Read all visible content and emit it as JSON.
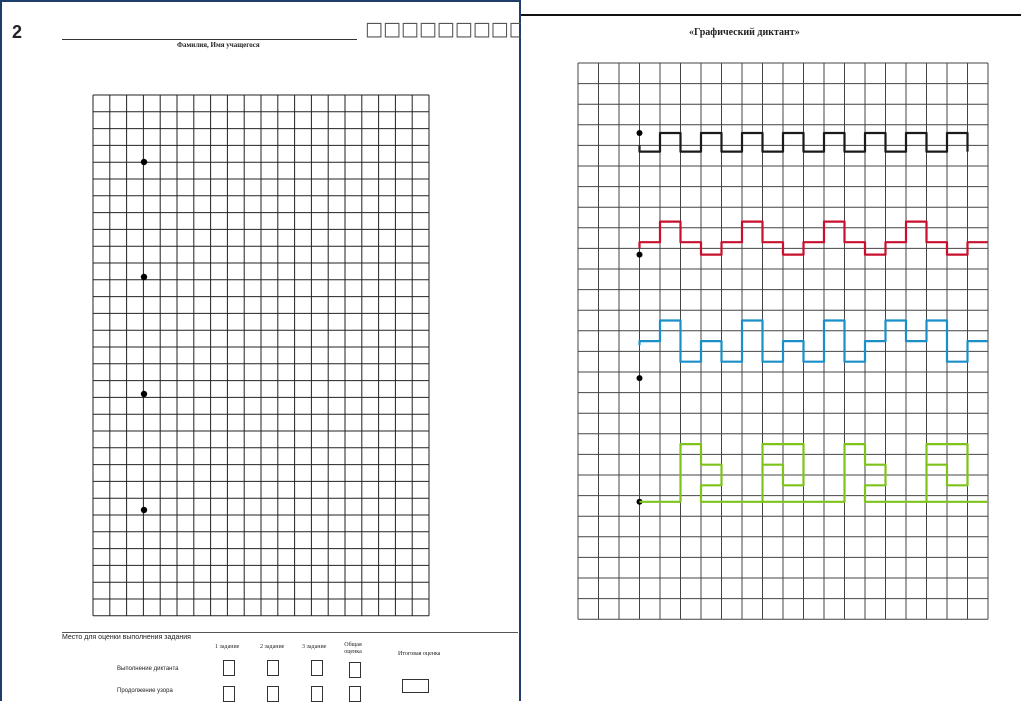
{
  "left_sheet": {
    "page_number": "2",
    "placeholder_boxes": "□□□□□□□□□□□□",
    "name_caption": "Фамилия, Имя учащегося",
    "footer": {
      "caption": "Место для оценки выполнения задания",
      "col_1": "1 задание",
      "col_2": "2 задание",
      "col_3": "3 задание",
      "col_4": "Общая оценка",
      "final_label": "Итоговая оценка",
      "row_1": "Выполнение диктанта",
      "row_2": "Продолжение узора"
    }
  },
  "right_sheet": {
    "title": "«Графический диктант»",
    "pattern_colors": [
      "#1a1a1a",
      "#c8102e",
      "#1a8fc9",
      "#7ec31a"
    ]
  }
}
